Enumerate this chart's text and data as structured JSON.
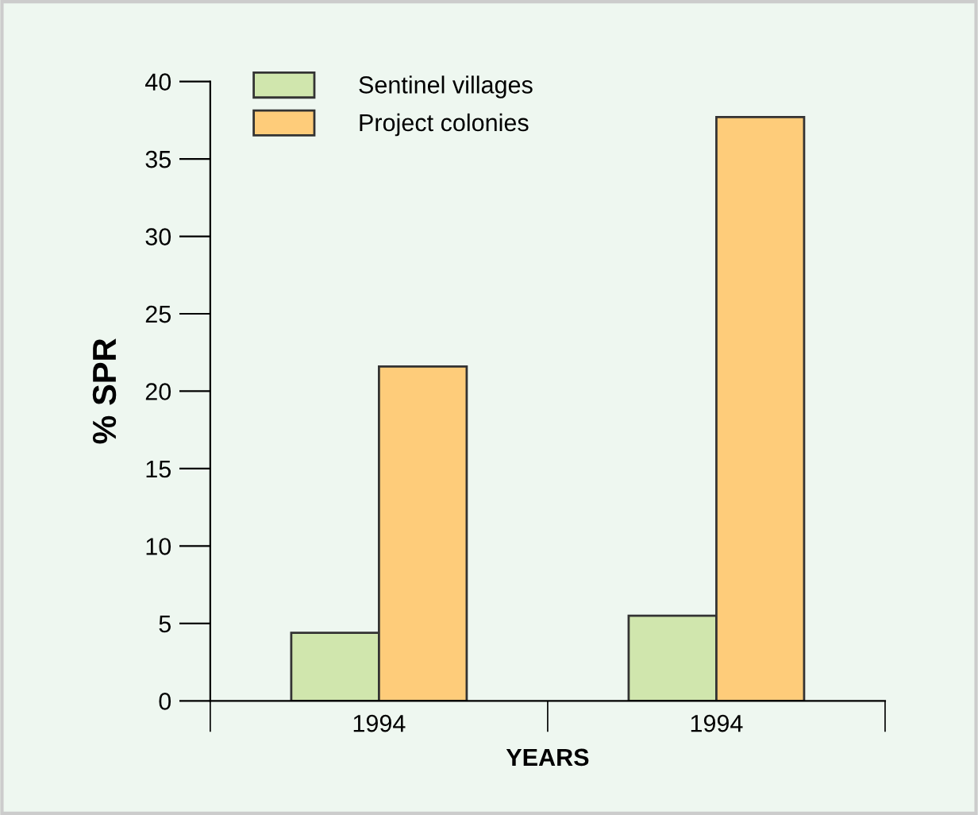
{
  "chart_data": {
    "type": "bar",
    "xlabel": "YEARS",
    "ylabel": "% SPR",
    "categories": [
      "1994",
      "1994"
    ],
    "series": [
      {
        "name": "Sentinel villages",
        "color": "#d0e6ad",
        "values": [
          4.4,
          5.5
        ]
      },
      {
        "name": "Project colonies",
        "color": "#fecc7a",
        "values": [
          21.6,
          37.7
        ]
      }
    ],
    "ylim": [
      0,
      40
    ],
    "yticks": [
      0,
      5,
      10,
      15,
      20,
      25,
      30,
      35,
      40
    ],
    "grid": false,
    "legend": "top left"
  }
}
